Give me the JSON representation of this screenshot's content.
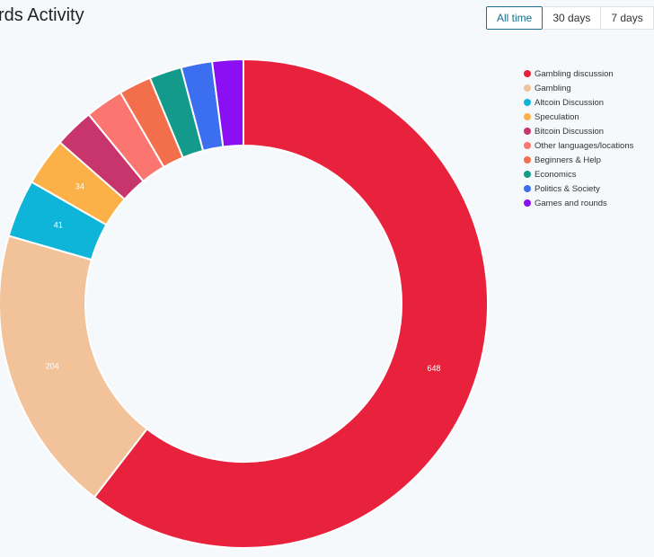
{
  "header": {
    "title": "rds Activity",
    "tabs": [
      {
        "label": "All time",
        "active": true
      },
      {
        "label": "30 days",
        "active": false
      },
      {
        "label": "7 days",
        "active": false
      }
    ]
  },
  "chart_data": {
    "type": "pie",
    "variant": "doughnut",
    "title": "rds Activity",
    "legend_position": "right",
    "series": [
      {
        "name": "Gambling discussion",
        "value": 648,
        "color": "#e8223d",
        "show_label": true
      },
      {
        "name": "Gambling",
        "value": 204,
        "color": "#f2c29b",
        "show_label": true
      },
      {
        "name": "Altcoin Discussion",
        "value": 41,
        "color": "#0fb5d8",
        "show_label": true
      },
      {
        "name": "Speculation",
        "value": 34,
        "color": "#fbb147",
        "show_label": true
      },
      {
        "name": "Bitcoin Discussion",
        "value": 28,
        "color": "#c8356d",
        "show_label": false
      },
      {
        "name": "Other languages/locations",
        "value": 27,
        "color": "#fb7670",
        "show_label": false
      },
      {
        "name": "Beginners & Help",
        "value": 23,
        "color": "#f36f4b",
        "show_label": false
      },
      {
        "name": "Economics",
        "value": 23,
        "color": "#149a8a",
        "show_label": false
      },
      {
        "name": "Politics & Society",
        "value": 22,
        "color": "#3c6ef0",
        "show_label": false
      },
      {
        "name": "Games and rounds",
        "value": 22,
        "color": "#8a0ff3",
        "show_label": false
      }
    ]
  }
}
